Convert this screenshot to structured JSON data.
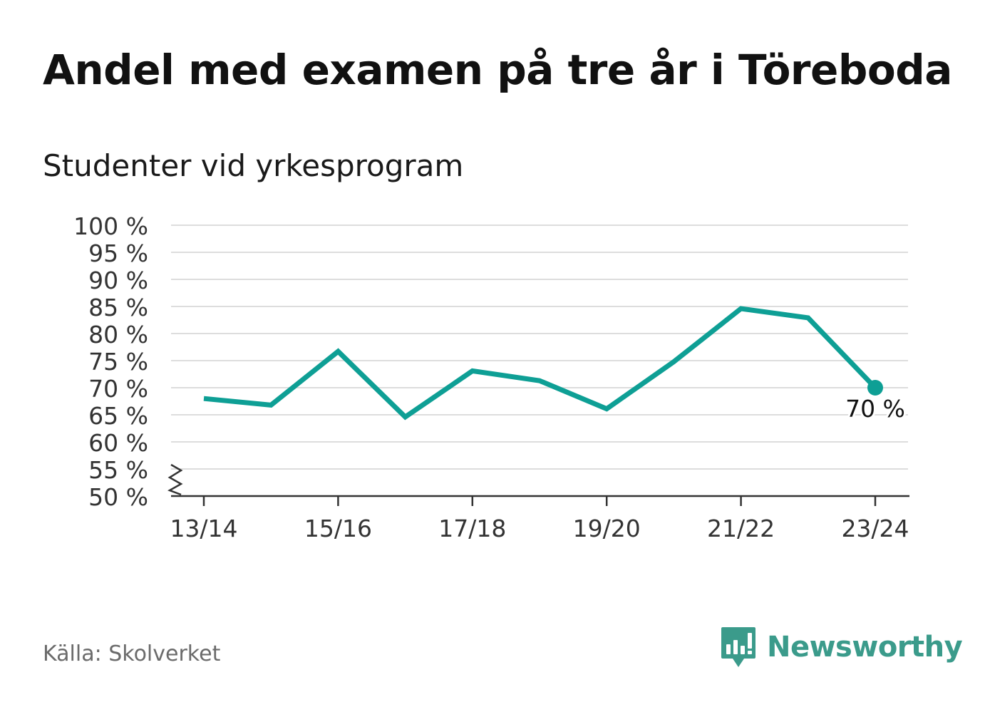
{
  "title": "Andel med examen på tre år i Töreboda",
  "subtitle": "Studenter vid yrkesprogram",
  "source": "Källa: Skolverket",
  "brand": {
    "name": "Newsworthy",
    "icon": "bar-chart-speech-bubble-icon"
  },
  "colors": {
    "line": "#0e9f95",
    "grid": "#dddddd",
    "axis": "#333333",
    "brand": "#3b9b8b"
  },
  "chart_data": {
    "type": "line",
    "x": [
      "13/14",
      "14/15",
      "15/16",
      "16/17",
      "17/18",
      "18/19",
      "19/20",
      "20/21",
      "21/22",
      "22/23",
      "23/24"
    ],
    "x_tick_labels": [
      "13/14",
      "15/16",
      "17/18",
      "19/20",
      "21/22",
      "23/24"
    ],
    "series": [
      {
        "values": [
          68,
          66.8,
          76.7,
          64.6,
          73.1,
          71.3,
          66.1,
          74.8,
          84.6,
          82.9,
          70
        ]
      }
    ],
    "ylim": [
      50,
      100
    ],
    "y_ticks": [
      50,
      55,
      60,
      65,
      70,
      75,
      80,
      85,
      90,
      95,
      100
    ],
    "y_tick_labels": [
      "50 %",
      "55 %",
      "60 %",
      "65 %",
      "70 %",
      "75 %",
      "80 %",
      "85 %",
      "90 %",
      "95 %",
      "100 %"
    ],
    "axis_break": true,
    "grid": true,
    "last_point_label": "70 %"
  }
}
